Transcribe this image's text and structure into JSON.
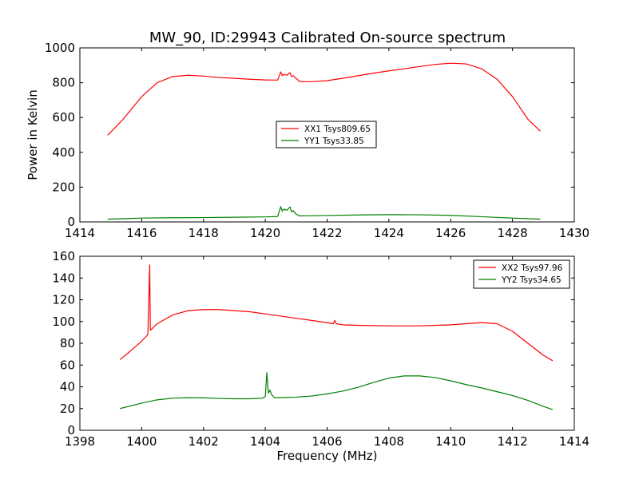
{
  "figure": {
    "title": "MW_90, ID:29943 Calibrated On-source spectrum"
  },
  "chart_data": [
    {
      "type": "line",
      "title": "MW_90, ID:29943 Calibrated On-source spectrum",
      "xlabel": "",
      "ylabel": "Power in Kelvin",
      "xlim": [
        1414,
        1430
      ],
      "ylim": [
        0,
        1000
      ],
      "xticks": [
        1414,
        1416,
        1418,
        1420,
        1422,
        1424,
        1426,
        1428,
        1430
      ],
      "yticks": [
        0,
        200,
        400,
        600,
        800,
        1000
      ],
      "grid": false,
      "legend": "center",
      "series": [
        {
          "name": "XX1 Tsys809.65",
          "color": "#ff0000",
          "x": [
            1414.9,
            1415.4,
            1416.0,
            1416.5,
            1417.0,
            1417.5,
            1418.0,
            1418.5,
            1419.0,
            1419.5,
            1420.0,
            1420.4,
            1420.5,
            1420.55,
            1420.6,
            1420.7,
            1420.8,
            1420.85,
            1420.9,
            1421.0,
            1421.1,
            1421.2,
            1421.5,
            1422.0,
            1422.5,
            1423.0,
            1423.5,
            1424.0,
            1424.5,
            1425.0,
            1425.5,
            1426.0,
            1426.5,
            1427.0,
            1427.5,
            1428.0,
            1428.5,
            1428.9
          ],
          "y": [
            498,
            590,
            720,
            800,
            835,
            843,
            838,
            830,
            825,
            820,
            816,
            815,
            862,
            840,
            848,
            843,
            858,
            835,
            840,
            825,
            808,
            806,
            806,
            812,
            825,
            840,
            855,
            868,
            880,
            893,
            905,
            912,
            908,
            880,
            820,
            720,
            590,
            522
          ]
        },
        {
          "name": "YY1 Tsys33.85",
          "color": "#008000",
          "x": [
            1414.9,
            1415.5,
            1416.0,
            1417.0,
            1418.0,
            1419.0,
            1420.0,
            1420.4,
            1420.5,
            1420.55,
            1420.6,
            1420.7,
            1420.8,
            1420.85,
            1420.9,
            1421.0,
            1421.1,
            1421.2,
            1422.0,
            1423.0,
            1424.0,
            1425.0,
            1426.0,
            1427.0,
            1428.0,
            1428.9
          ],
          "y": [
            16,
            19,
            22,
            24,
            25,
            27,
            29,
            31,
            88,
            62,
            74,
            67,
            86,
            58,
            65,
            45,
            35,
            35,
            37,
            40,
            42,
            41,
            38,
            30,
            22,
            16
          ]
        }
      ]
    },
    {
      "type": "line",
      "title": "",
      "xlabel": "Frequency (MHz)",
      "ylabel": "",
      "xlim": [
        1398,
        1414
      ],
      "ylim": [
        0,
        160
      ],
      "xticks": [
        1398,
        1400,
        1402,
        1404,
        1406,
        1408,
        1410,
        1412,
        1414
      ],
      "yticks": [
        0,
        20,
        40,
        60,
        80,
        100,
        120,
        140,
        160
      ],
      "grid": false,
      "legend": "top-right",
      "series": [
        {
          "name": "XX2 Tsys97.96",
          "color": "#ff0000",
          "x": [
            1399.3,
            1399.6,
            1400.0,
            1400.2,
            1400.26,
            1400.28,
            1400.32,
            1400.5,
            1401.0,
            1401.5,
            1402.0,
            1402.5,
            1403.0,
            1403.5,
            1404.0,
            1404.5,
            1405.0,
            1405.5,
            1406.0,
            1406.2,
            1406.25,
            1406.3,
            1406.5,
            1407.0,
            1408.0,
            1409.0,
            1410.0,
            1410.5,
            1411.0,
            1411.5,
            1412.0,
            1412.5,
            1413.0,
            1413.3
          ],
          "y": [
            65,
            72,
            82,
            88,
            152,
            92,
            93,
            98,
            106,
            110,
            111,
            111,
            110,
            109,
            107,
            105,
            103,
            101,
            99,
            98,
            101,
            98,
            97,
            96.5,
            96,
            96,
            97,
            98,
            99,
            98,
            91,
            80,
            69,
            64
          ]
        },
        {
          "name": "YY2 Tsys34.65",
          "color": "#008000",
          "x": [
            1399.3,
            1400.0,
            1400.5,
            1401.0,
            1401.5,
            1402.0,
            1402.5,
            1403.0,
            1403.5,
            1403.9,
            1404.0,
            1404.05,
            1404.1,
            1404.15,
            1404.2,
            1404.3,
            1404.5,
            1405.0,
            1405.5,
            1406.0,
            1406.5,
            1407.0,
            1407.5,
            1408.0,
            1408.5,
            1409.0,
            1409.5,
            1410.0,
            1410.5,
            1411.0,
            1411.5,
            1412.0,
            1412.5,
            1413.0,
            1413.3
          ],
          "y": [
            20,
            25,
            28,
            29.5,
            30,
            29.8,
            29.3,
            29,
            29,
            29.5,
            31,
            53,
            34,
            37,
            33,
            30,
            30,
            30.5,
            31.5,
            33.5,
            36,
            39.5,
            44,
            48,
            50,
            50,
            48.5,
            45.5,
            42,
            39,
            35.5,
            32,
            27.5,
            22,
            19
          ]
        }
      ]
    }
  ]
}
